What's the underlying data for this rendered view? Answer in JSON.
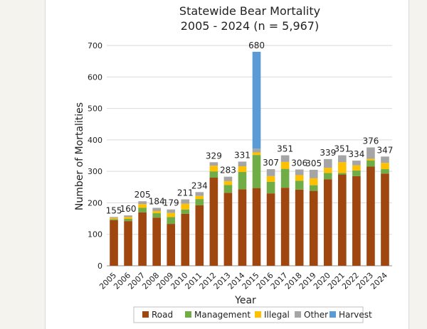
{
  "chart_data": {
    "type": "bar",
    "stacked": true,
    "title": "Statewide Bear Mortality",
    "subtitle": "2005 - 2024 (n = 5,967)",
    "xlabel": "Year",
    "ylabel": "Number of Mortalities",
    "ylim": [
      0,
      700
    ],
    "yticks": [
      0,
      100,
      200,
      300,
      400,
      500,
      600,
      700
    ],
    "grid": true,
    "legend": "bottom",
    "categories": [
      "2005",
      "2006",
      "2007",
      "2008",
      "2009",
      "2010",
      "2011",
      "2012",
      "2013",
      "2014",
      "2015",
      "2016",
      "2017",
      "2018",
      "2019",
      "2020",
      "2021",
      "2022",
      "2023",
      "2024"
    ],
    "totals": [
      155,
      160,
      205,
      184,
      179,
      211,
      234,
      329,
      283,
      331,
      680,
      307,
      351,
      306,
      305,
      339,
      351,
      334,
      376,
      347
    ],
    "series": [
      {
        "name": "Road",
        "color": "#a0460f",
        "values": [
          145,
          142,
          170,
          153,
          133,
          165,
          192,
          280,
          232,
          243,
          247,
          230,
          248,
          242,
          238,
          275,
          290,
          285,
          315,
          293
        ]
      },
      {
        "name": "Management",
        "color": "#70ad47",
        "values": [
          3,
          7,
          14,
          14,
          22,
          14,
          20,
          20,
          25,
          55,
          105,
          37,
          60,
          28,
          18,
          20,
          5,
          18,
          20,
          14
        ]
      },
      {
        "name": "Illegal",
        "color": "#ffc000",
        "values": [
          4,
          6,
          12,
          7,
          13,
          18,
          10,
          18,
          12,
          18,
          8,
          18,
          22,
          18,
          22,
          16,
          34,
          16,
          5,
          20
        ]
      },
      {
        "name": "Other",
        "color": "#a5a5a5",
        "values": [
          3,
          5,
          9,
          10,
          11,
          14,
          12,
          11,
          14,
          15,
          12,
          22,
          21,
          18,
          27,
          28,
          22,
          15,
          36,
          20
        ]
      },
      {
        "name": "Harvest",
        "color": "#5b9bd5",
        "values": [
          0,
          0,
          0,
          0,
          0,
          0,
          0,
          0,
          0,
          0,
          308,
          0,
          0,
          0,
          0,
          0,
          0,
          0,
          0,
          0
        ]
      }
    ]
  }
}
